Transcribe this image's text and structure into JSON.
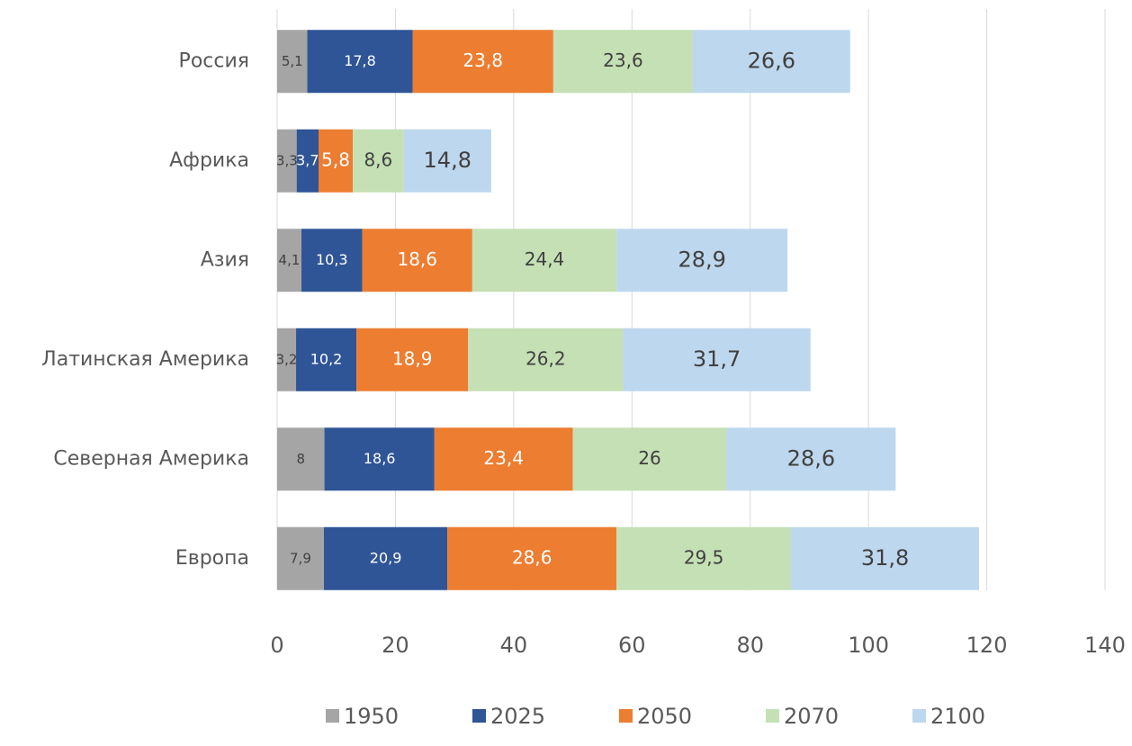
{
  "chart_data": {
    "type": "stacked_barh",
    "categories": [
      "Россия",
      "Африка",
      "Азия",
      "Латинская Америка",
      "Северная Америка",
      "Европа"
    ],
    "series": [
      {
        "name": "1950",
        "color": "#a5a5a5",
        "values": [
          5.1,
          3.3,
          4.1,
          3.2,
          8,
          7.9
        ],
        "value_labels": [
          "5,1",
          "3,3",
          "4,1",
          "3,2",
          "8",
          "7,9"
        ]
      },
      {
        "name": "2025",
        "color": "#2f5597",
        "values": [
          17.8,
          3.7,
          10.3,
          10.2,
          18.6,
          20.9
        ],
        "value_labels": [
          "17,8",
          "3,7",
          "10,3",
          "10,2",
          "18,6",
          "20,9"
        ]
      },
      {
        "name": "2050",
        "color": "#ed7d31",
        "values": [
          23.8,
          5.8,
          18.6,
          18.9,
          23.4,
          28.6
        ],
        "value_labels": [
          "23,8",
          "5,8",
          "18,6",
          "18,9",
          "23,4",
          "28,6"
        ]
      },
      {
        "name": "2070",
        "color": "#c5e0b4",
        "values": [
          23.6,
          8.6,
          24.4,
          26.2,
          26,
          29.5
        ],
        "value_labels": [
          "23,6",
          "8,6",
          "24,4",
          "26,2",
          "26",
          "29,5"
        ]
      },
      {
        "name": "2100",
        "color": "#bdd7ee",
        "values": [
          26.6,
          14.8,
          28.9,
          31.7,
          28.6,
          31.8
        ],
        "value_labels": [
          "26,6",
          "14,8",
          "28,9",
          "31,7",
          "28,6",
          "31,8"
        ]
      }
    ],
    "xlim": [
      0,
      140
    ],
    "xticks": [
      0,
      20,
      40,
      60,
      80,
      100,
      120,
      140
    ],
    "grid": true,
    "legend": "bottom"
  }
}
